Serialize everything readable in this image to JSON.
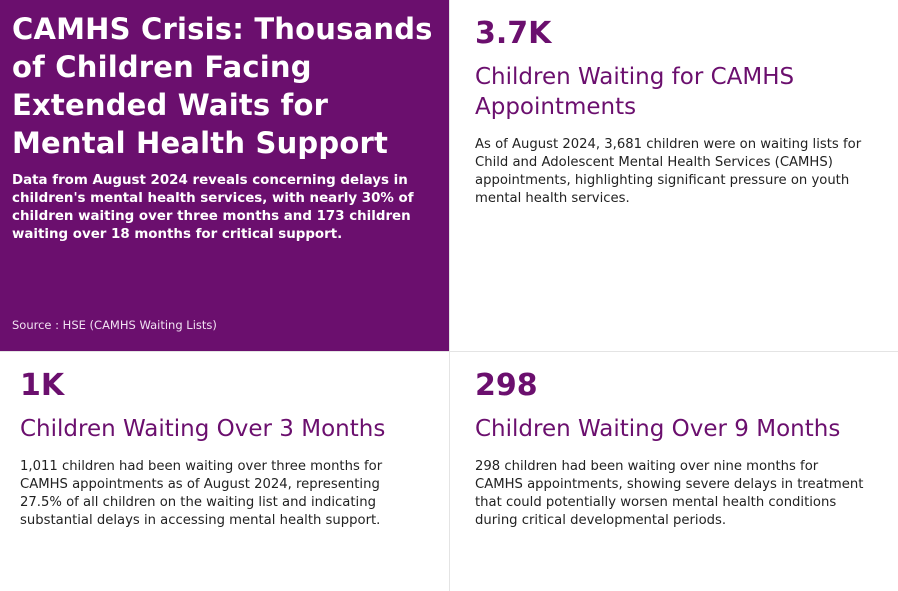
{
  "hero": {
    "title": "CAMHS Crisis: Thousands of Children Facing Extended Waits for Mental Health Support",
    "subtitle": "Data from August 2024 reveals concerning delays in children's mental health services, with nearly 30% of children waiting over three months and 173 children waiting over 18 months for critical support.",
    "source": "Source : HSE (CAMHS Waiting Lists)"
  },
  "cards": [
    {
      "metric": "3.7K",
      "title": "Children Waiting for CAMHS Appointments",
      "description": "As of August 2024, 3,681 children were on waiting lists for Child and Adolescent Mental Health Services (CAMHS) appointments, highlighting significant pressure on youth mental health services."
    },
    {
      "metric": "1K",
      "title": "Children Waiting Over 3 Months",
      "description": "1,011 children had been waiting over three months for CAMHS appointments as of August 2024, representing 27.5% of all children on the waiting list and indicating substantial delays in accessing mental health support."
    },
    {
      "metric": "298",
      "title": "Children Waiting Over 9 Months",
      "description": "298 children had been waiting over nine months for CAMHS appointments, showing severe delays in treatment that could potentially worsen mental health conditions during critical developmental periods."
    }
  ],
  "colors": {
    "brand_purple": "#6b0f6e",
    "background": "#ffffff",
    "body_text": "#222222"
  }
}
